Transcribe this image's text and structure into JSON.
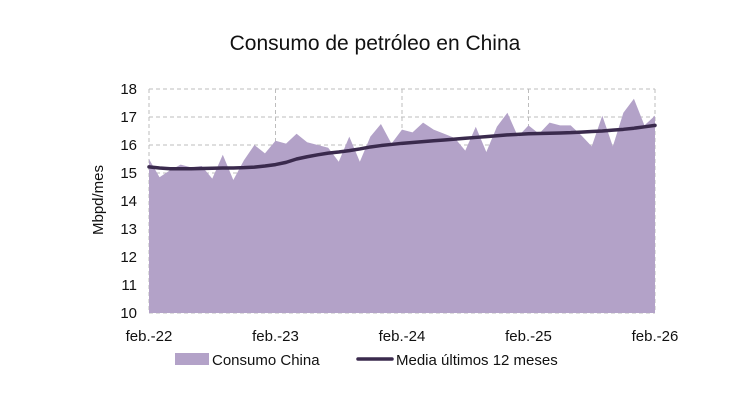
{
  "chart_data": {
    "type": "area",
    "title": "Consumo de petróleo en China",
    "ylabel": "Mbpd/mes",
    "xlabel": "",
    "ylim": [
      10,
      18
    ],
    "yticks": [
      10,
      11,
      12,
      13,
      14,
      15,
      16,
      17,
      18
    ],
    "xticks": [
      "feb.-22",
      "feb.-23",
      "feb.-24",
      "feb.-25",
      "feb.-26"
    ],
    "grid": true,
    "legend_position": "bottom",
    "colors": {
      "area": "#b3a2c8",
      "line": "#3a2a4d",
      "grid": "#bdbdbd"
    },
    "series": [
      {
        "name": "Consumo China",
        "kind": "area",
        "values": [
          15.5,
          14.85,
          15.1,
          15.3,
          15.2,
          15.25,
          14.8,
          15.65,
          14.75,
          15.45,
          16.0,
          15.7,
          16.15,
          16.05,
          16.4,
          16.1,
          16.0,
          15.9,
          15.4,
          16.3,
          15.4,
          16.3,
          16.75,
          16.05,
          16.55,
          16.45,
          16.8,
          16.55,
          16.4,
          16.25,
          15.8,
          16.65,
          15.75,
          16.65,
          17.15,
          16.3,
          16.7,
          16.4,
          16.8,
          16.7,
          16.7,
          16.35,
          15.95,
          17.05,
          15.95,
          17.15,
          17.65,
          16.7,
          17.05
        ]
      },
      {
        "name": "Media últimos 12 meses",
        "kind": "line",
        "values": [
          15.22,
          15.18,
          15.15,
          15.15,
          15.15,
          15.16,
          15.17,
          15.18,
          15.18,
          15.19,
          15.21,
          15.25,
          15.3,
          15.38,
          15.5,
          15.58,
          15.65,
          15.71,
          15.75,
          15.8,
          15.86,
          15.93,
          15.98,
          16.02,
          16.06,
          16.09,
          16.12,
          16.15,
          16.18,
          16.21,
          16.24,
          16.27,
          16.3,
          16.33,
          16.36,
          16.38,
          16.4,
          16.41,
          16.42,
          16.43,
          16.44,
          16.46,
          16.48,
          16.5,
          16.53,
          16.56,
          16.6,
          16.65,
          16.7
        ]
      }
    ]
  }
}
